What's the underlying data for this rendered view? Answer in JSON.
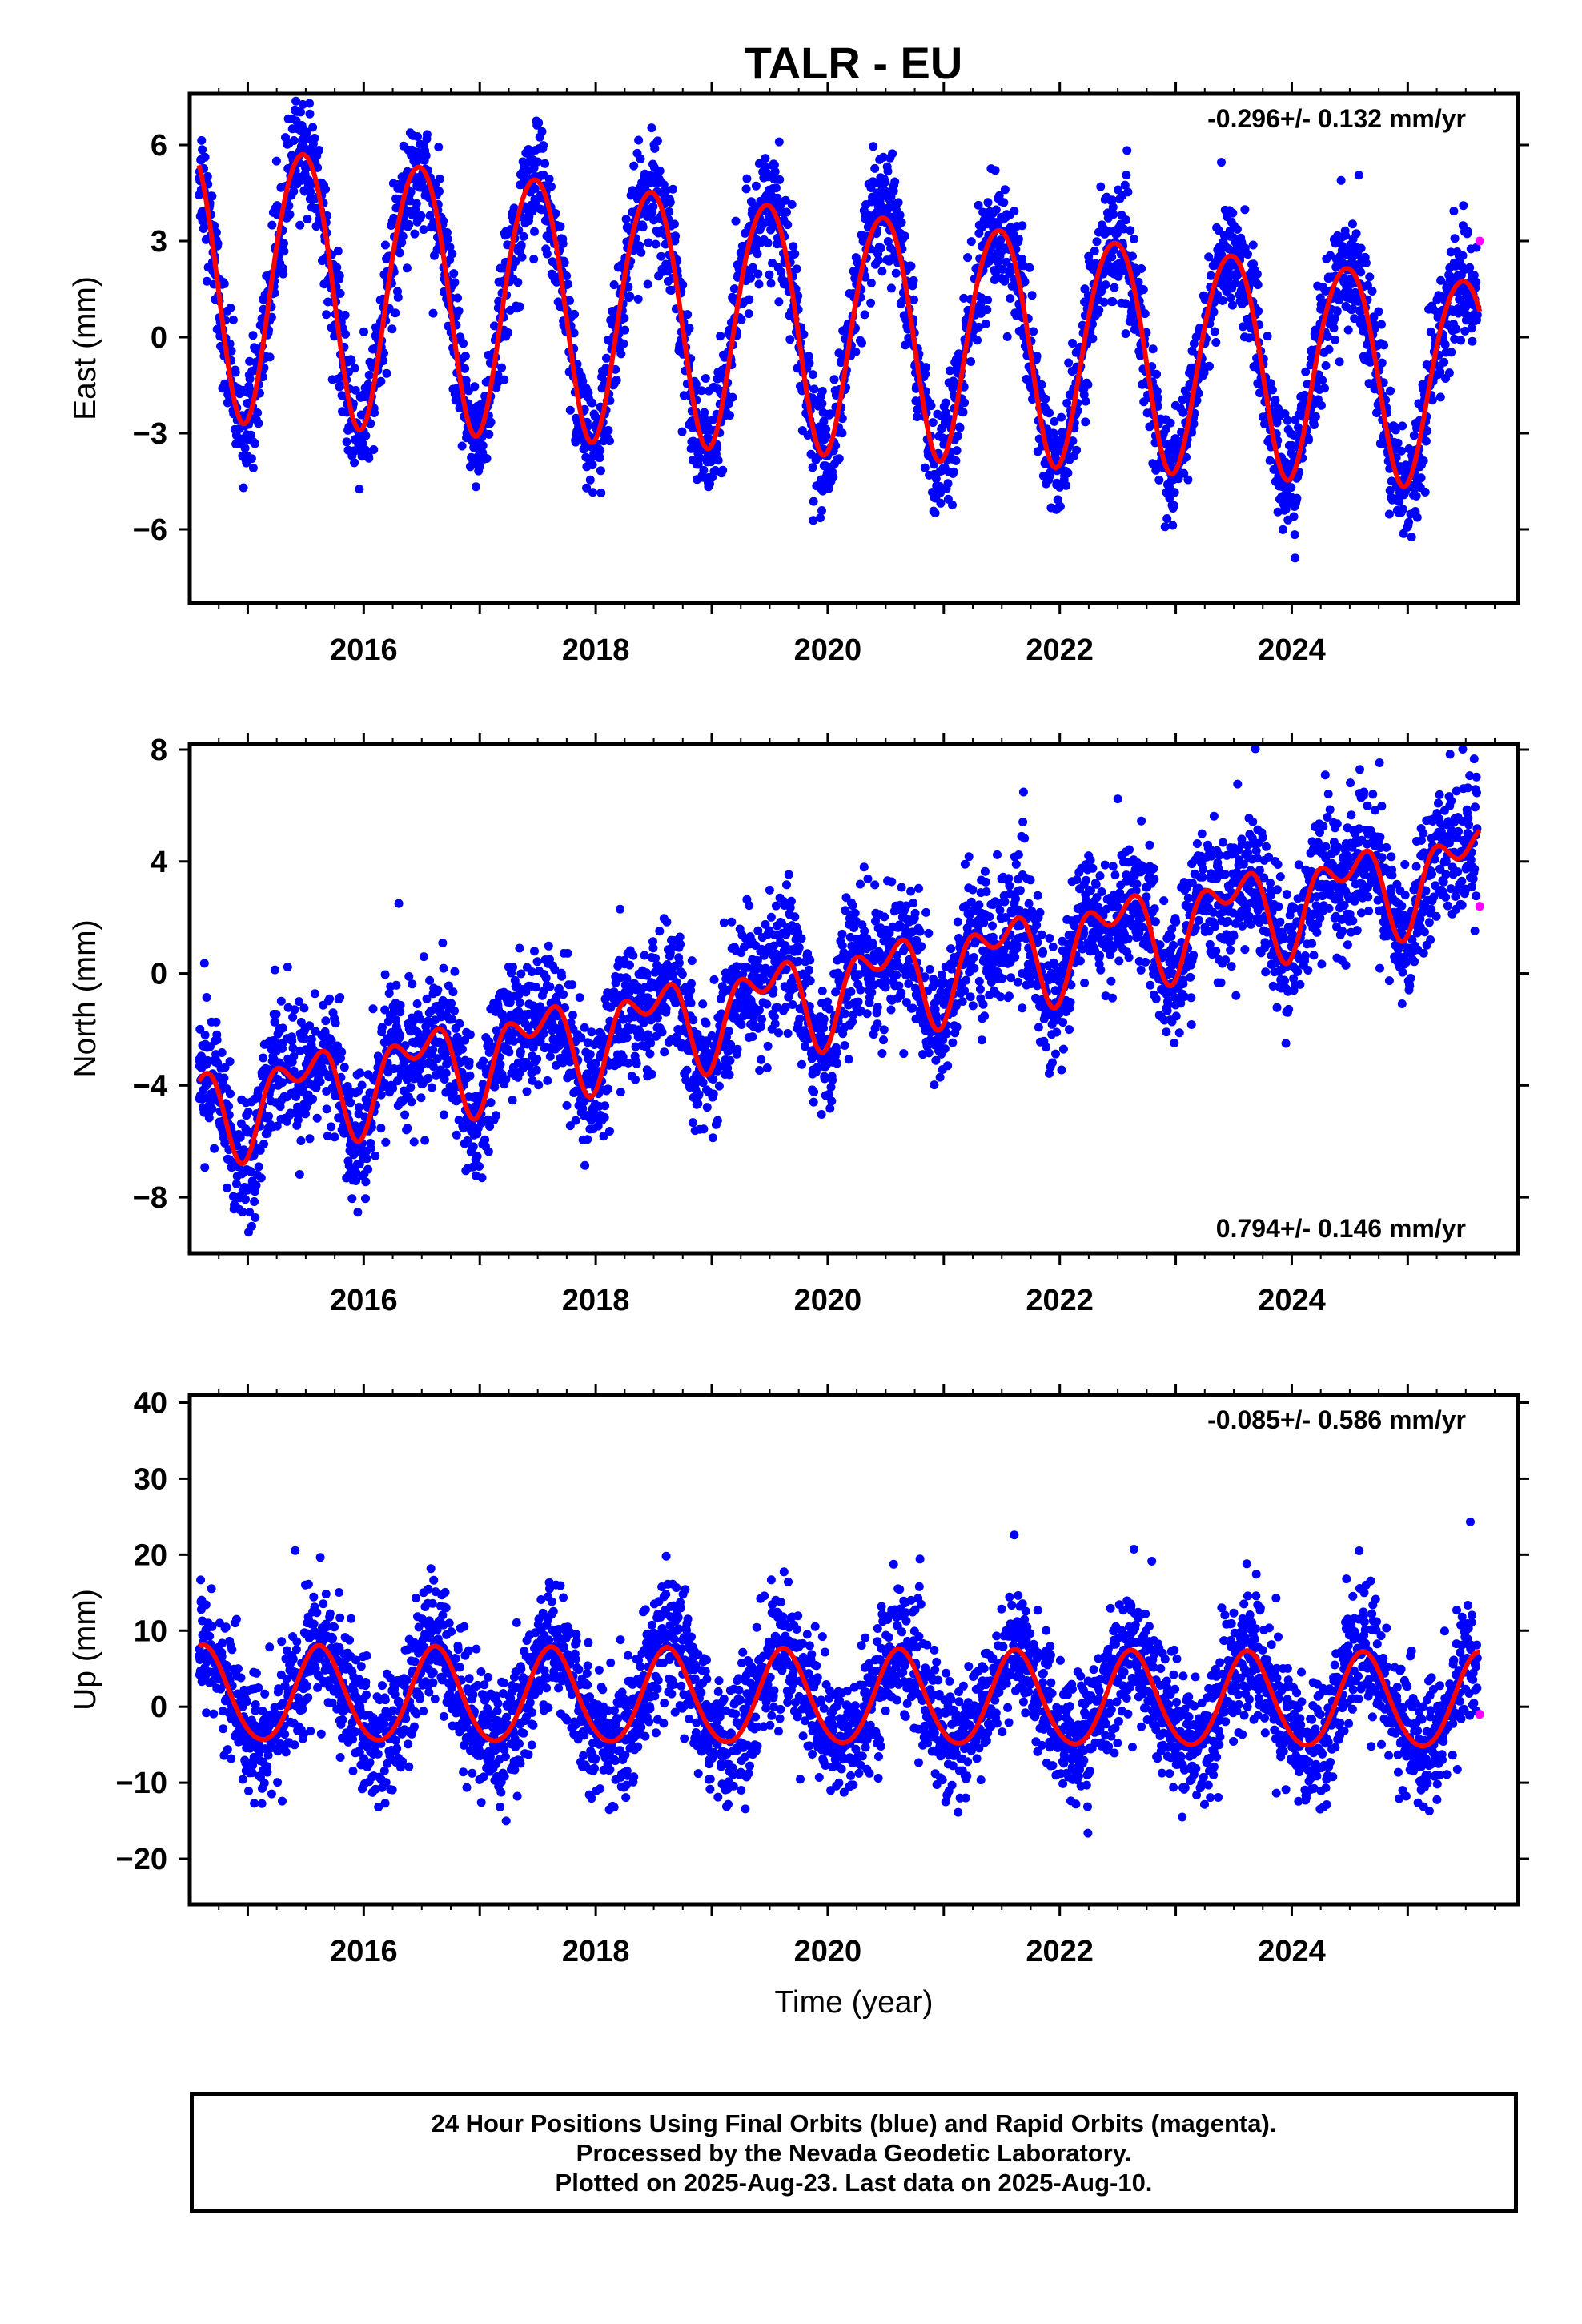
{
  "title": "TALR - EU",
  "colors": {
    "final_orbits": "#0000ff",
    "rapid_orbits": "#ff00ff",
    "model": "#ff0000",
    "frame": "#000000"
  },
  "chart_data": [
    {
      "type": "scatter",
      "component": "East",
      "ylabel": "East (mm)",
      "xlabel": "",
      "ylim": [
        -8.3,
        7.6
      ],
      "xlim": [
        2014.5,
        2025.95
      ],
      "yticks": [
        -6,
        -3,
        0,
        3,
        6
      ],
      "ytick_labels": [
        "−6",
        "−3",
        "0",
        "3",
        "6"
      ],
      "xticks": [
        2016,
        2018,
        2020,
        2022,
        2024
      ],
      "xtick_labels": [
        "2016",
        "2018",
        "2020",
        "2022",
        "2024"
      ],
      "rate_text": "-0.296+/- 0.132 mm/yr",
      "rate_position": "top-right",
      "model": {
        "trend_mm_per_yr": -0.296,
        "offset_mm": 0.4,
        "annual_amp": 3.8,
        "annual_phase_peak": 0.47,
        "semiannual_amp": 0.3,
        "semiannual_phase": 0.2,
        "amp_trend": -0.1,
        "ref_year": 2020.0
      },
      "noise_sd_mm": 0.9,
      "rapid_points": [
        {
          "x": 2025.62,
          "y": 3.0
        }
      ]
    },
    {
      "type": "scatter",
      "component": "North",
      "ylabel": "North (mm)",
      "xlabel": "",
      "ylim": [
        -10,
        8.2
      ],
      "xlim": [
        2014.5,
        2025.95
      ],
      "yticks": [
        -8,
        -4,
        0,
        4,
        8
      ],
      "ytick_labels": [
        "−8",
        "−4",
        "0",
        "4",
        "8"
      ],
      "xticks": [
        2016,
        2018,
        2020,
        2022,
        2024
      ],
      "xtick_labels": [
        "2016",
        "2018",
        "2020",
        "2022",
        "2024"
      ],
      "rate_text": "0.794+/- 0.146 mm/yr",
      "rate_position": "bottom-right",
      "model": {
        "trend_mm_per_yr": 0.794,
        "offset_mm": -0.6,
        "annual_amp": 1.3,
        "annual_phase_peak": 0.47,
        "semiannual_amp": 0.9,
        "semiannual_phase": 0.2,
        "amp_trend": 0.0,
        "ref_year": 2020.0
      },
      "noise_sd_mm": 1.2,
      "rapid_points": [
        {
          "x": 2025.62,
          "y": 2.4
        }
      ]
    },
    {
      "type": "scatter",
      "component": "Up",
      "ylabel": "Up (mm)",
      "xlabel": "Time (year)",
      "ylim": [
        -26,
        41
      ],
      "xlim": [
        2014.5,
        2025.95
      ],
      "yticks": [
        -20,
        -10,
        0,
        10,
        20,
        30,
        40
      ],
      "ytick_labels": [
        "−20",
        "−10",
        "0",
        "10",
        "20",
        "30",
        "40"
      ],
      "xticks": [
        2016,
        2018,
        2020,
        2022,
        2024
      ],
      "xtick_labels": [
        "2016",
        "2018",
        "2020",
        "2022",
        "2024"
      ],
      "rate_text": "-0.085+/- 0.586 mm/yr",
      "rate_position": "top-right",
      "model": {
        "trend_mm_per_yr": -0.085,
        "offset_mm": 1.0,
        "annual_amp": 6.2,
        "annual_phase_peak": 0.62,
        "semiannual_amp": 0.5,
        "semiannual_phase": 0.1,
        "amp_trend": 0.0,
        "ref_year": 2020.0
      },
      "noise_sd_mm": 4.2,
      "rapid_points": [
        {
          "x": 2025.62,
          "y": -1.0
        }
      ]
    }
  ],
  "footer": {
    "line1": "24 Hour Positions Using Final Orbits (blue) and Rapid Orbits (magenta).",
    "line2": "Processed by the Nevada Geodetic Laboratory.",
    "line3": "Plotted on 2025-Aug-23. Last data on 2025-Aug-10."
  }
}
